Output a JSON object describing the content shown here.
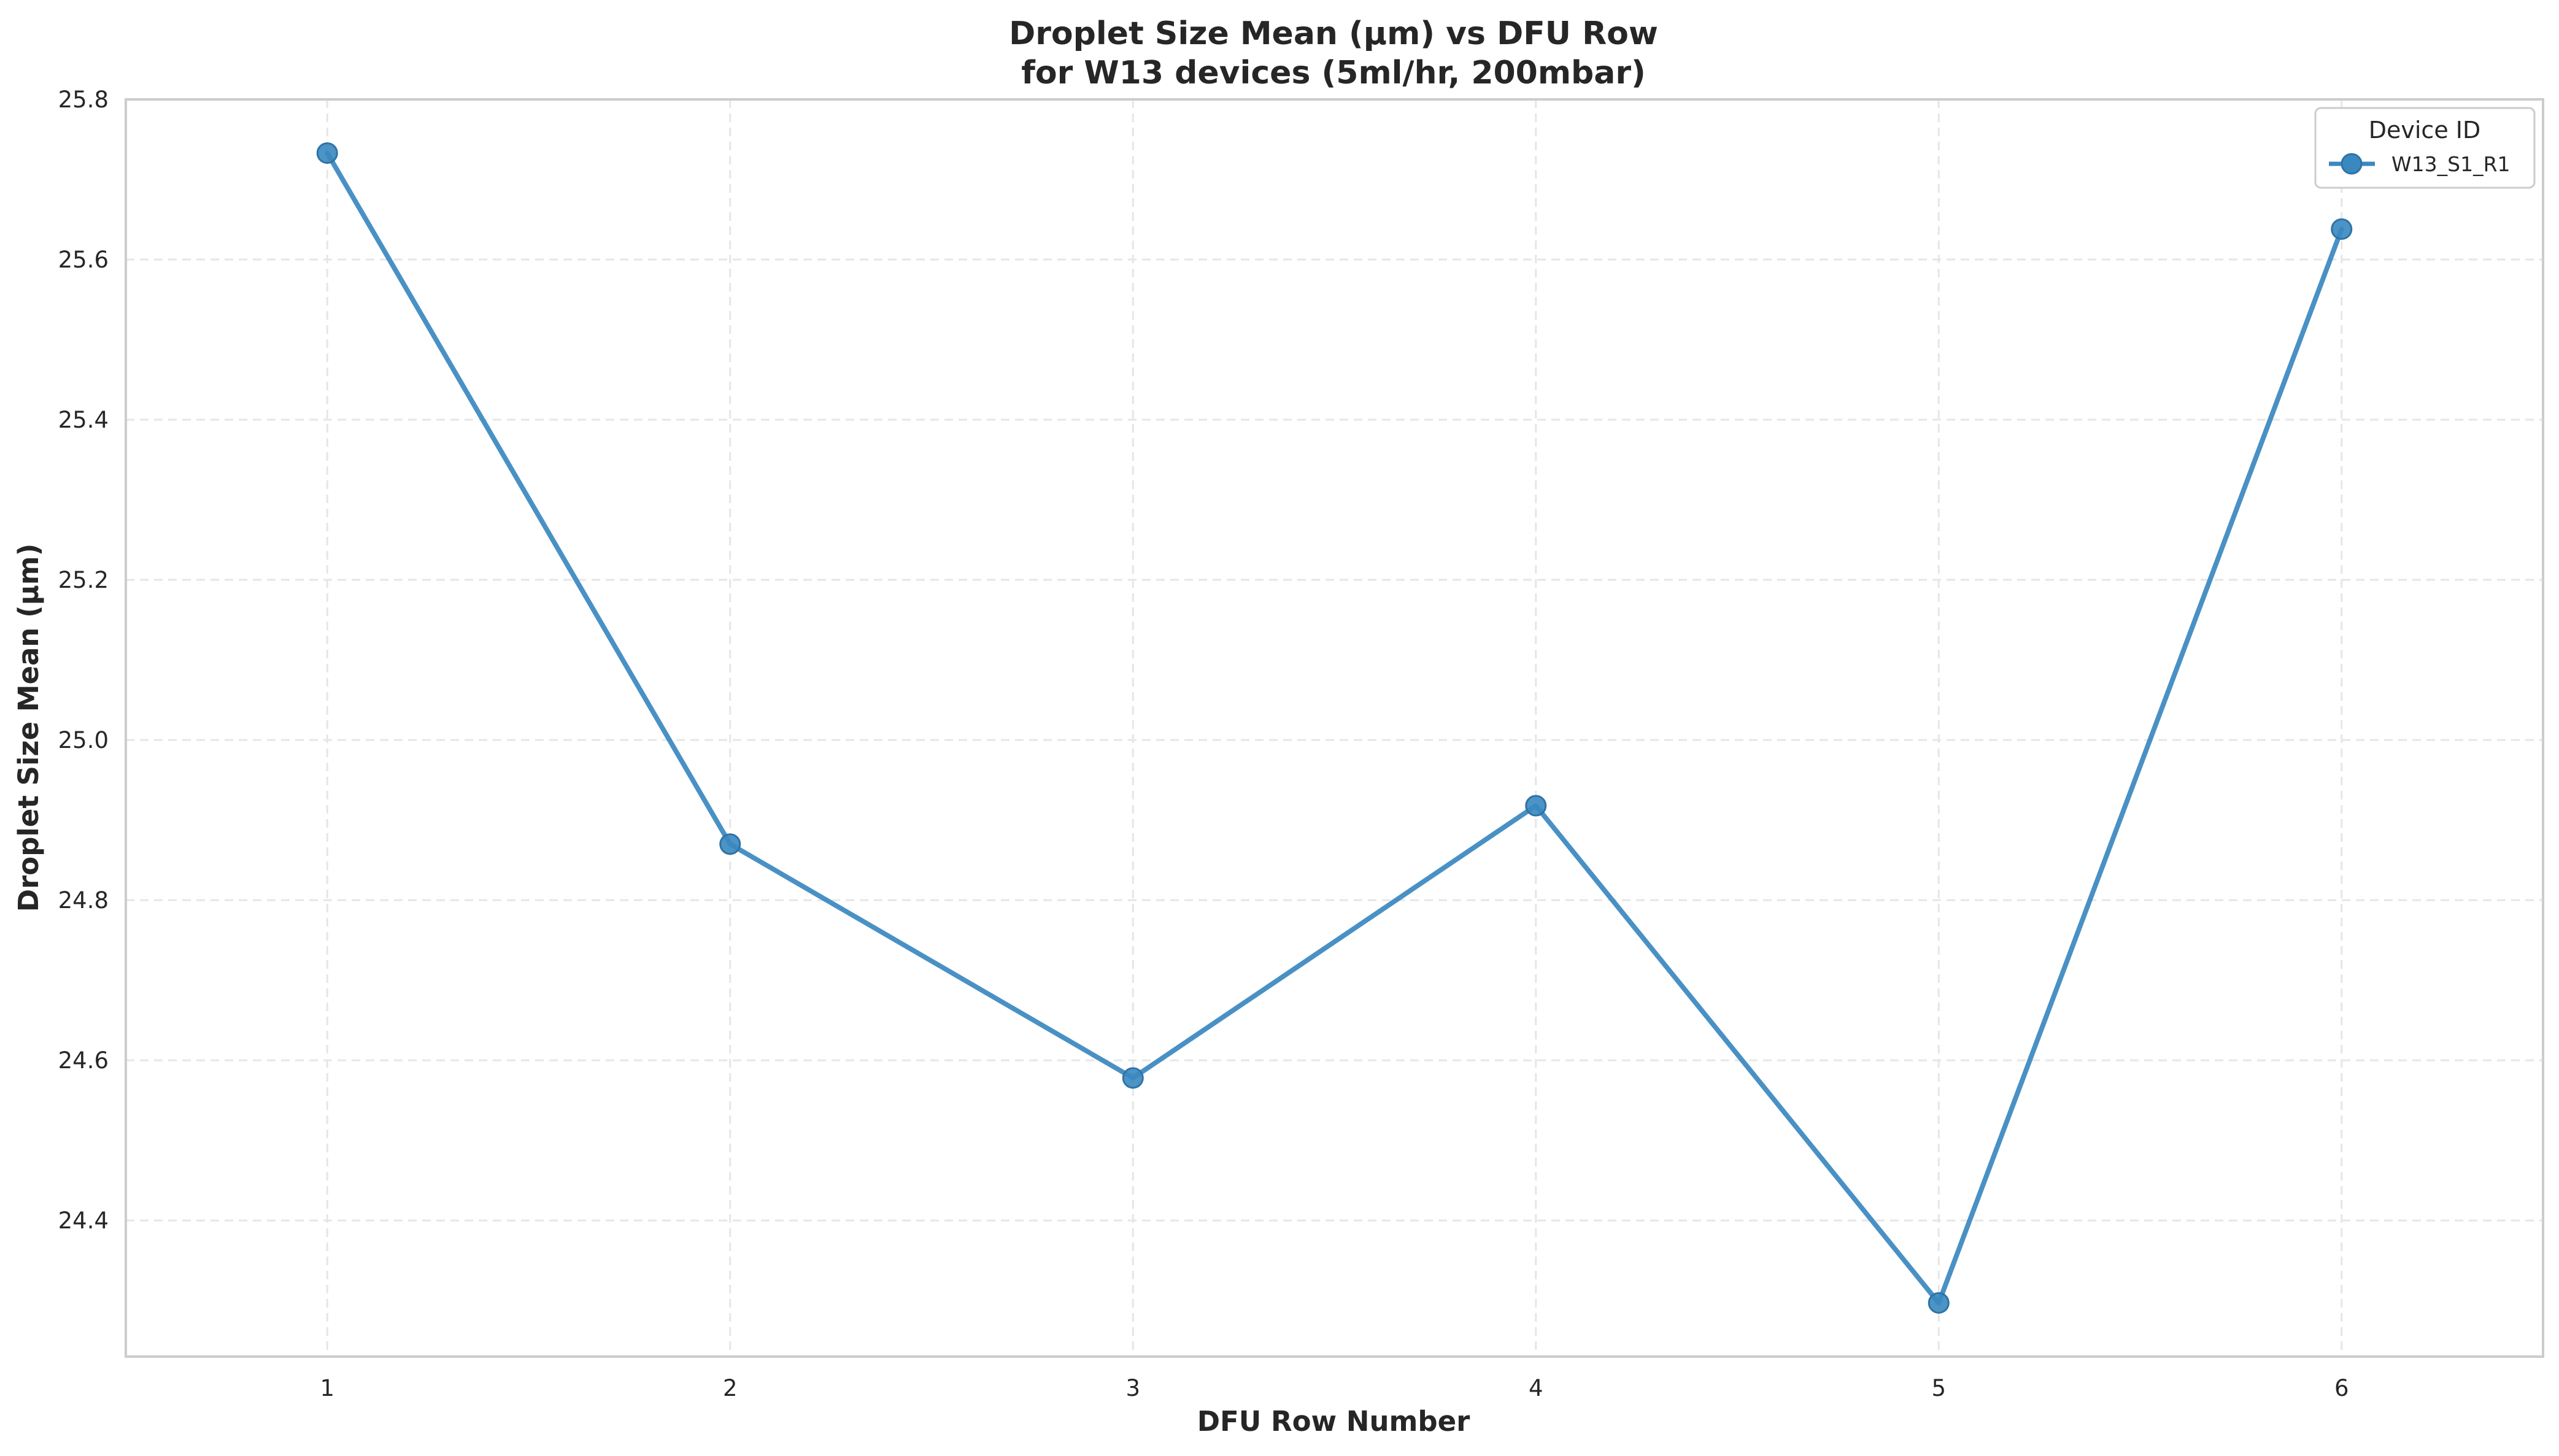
{
  "chart_data": {
    "type": "line",
    "title_line1": "Droplet Size Mean (µm) vs DFU Row",
    "title_line2": "for W13 devices (5ml/hr, 200mbar)",
    "xlabel": "DFU Row Number",
    "ylabel": "Droplet Size Mean (µm)",
    "x": [
      1,
      2,
      3,
      4,
      5,
      6
    ],
    "x_ticks": [
      "1",
      "2",
      "3",
      "4",
      "5",
      "6"
    ],
    "xlim": [
      0.5,
      6.5
    ],
    "y_ticks": [
      "24.4",
      "24.6",
      "24.8",
      "25.0",
      "25.2",
      "25.4",
      "25.6",
      "25.8"
    ],
    "y_tick_values": [
      24.4,
      24.6,
      24.8,
      25.0,
      25.2,
      25.4,
      25.6,
      25.8
    ],
    "ylim": [
      24.23,
      25.8
    ],
    "grid": true,
    "legend": {
      "title": "Device ID",
      "placement": "top-right"
    },
    "series": [
      {
        "name": "W13_S1_R1",
        "color": "#3a88c0",
        "marker": "circle",
        "values": [
          25.733,
          24.87,
          24.578,
          24.918,
          24.297,
          25.638
        ]
      }
    ]
  }
}
